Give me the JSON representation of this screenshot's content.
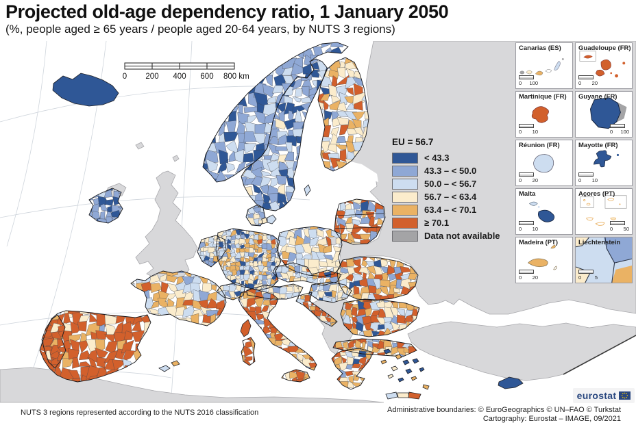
{
  "title": "Projected old-age dependency ratio, 1 January 2050",
  "subtitle": "(%, people aged ≥ 65 years / people aged 20-64 years, by NUTS 3 regions)",
  "scale_bar": {
    "ticks": [
      "0",
      "200",
      "400",
      "600",
      "800 km"
    ]
  },
  "legend": {
    "eu_label": "EU = 56.7",
    "classes": [
      {
        "label": "< 43.3",
        "color": "#2f5796"
      },
      {
        "label": "43.3 – < 50.0",
        "color": "#8fa8d5"
      },
      {
        "label": "50.0 – < 56.7",
        "color": "#cdddf0"
      },
      {
        "label": "56.7 – < 63.4",
        "color": "#fbeccc"
      },
      {
        "label": "63.4 – < 70.1",
        "color": "#eab264"
      },
      {
        "label": "≥ 70.1",
        "color": "#d2602c"
      },
      {
        "label": "Data not available",
        "color": "#a4a4a6"
      }
    ]
  },
  "map": {
    "sea_color": "#ffffff",
    "no_data_land_color": "#d8d8da",
    "border_color": "#17181c",
    "mosaic_regions": [
      {
        "id": "norway",
        "weights": [
          0.28,
          0.5,
          0.22,
          0.0,
          0.0,
          0.0
        ]
      },
      {
        "id": "sweden",
        "weights": [
          0.25,
          0.45,
          0.25,
          0.05,
          0.0,
          0.0
        ]
      },
      {
        "id": "finland",
        "weights": [
          0.02,
          0.13,
          0.2,
          0.3,
          0.2,
          0.15
        ]
      },
      {
        "id": "denmark",
        "weights": [
          0.05,
          0.3,
          0.35,
          0.3,
          0.0,
          0.0
        ]
      },
      {
        "id": "baltics",
        "weights": [
          0.05,
          0.15,
          0.1,
          0.1,
          0.15,
          0.45
        ]
      },
      {
        "id": "ireland",
        "weights": [
          0.2,
          0.7,
          0.1,
          0.0,
          0.0,
          0.0
        ]
      },
      {
        "id": "poland",
        "weights": [
          0.02,
          0.12,
          0.3,
          0.33,
          0.15,
          0.08
        ]
      },
      {
        "id": "germany",
        "weights": [
          0.12,
          0.16,
          0.25,
          0.25,
          0.18,
          0.04
        ]
      },
      {
        "id": "benelux",
        "weights": [
          0.1,
          0.27,
          0.33,
          0.22,
          0.08,
          0.0
        ]
      },
      {
        "id": "france",
        "weights": [
          0.02,
          0.1,
          0.22,
          0.28,
          0.28,
          0.1
        ]
      },
      {
        "id": "spain",
        "weights": [
          0.0,
          0.02,
          0.05,
          0.13,
          0.2,
          0.6
        ]
      },
      {
        "id": "portugal",
        "weights": [
          0.0,
          0.0,
          0.03,
          0.1,
          0.22,
          0.65
        ]
      },
      {
        "id": "alpine_ch",
        "weights": [
          0.05,
          0.2,
          0.4,
          0.3,
          0.05,
          0.0
        ]
      },
      {
        "id": "alpine_at",
        "weights": [
          0.03,
          0.15,
          0.4,
          0.32,
          0.1,
          0.0
        ]
      },
      {
        "id": "czsk",
        "weights": [
          0.03,
          0.12,
          0.25,
          0.35,
          0.17,
          0.08
        ]
      },
      {
        "id": "hungary",
        "weights": [
          0.02,
          0.13,
          0.35,
          0.3,
          0.15,
          0.05
        ]
      },
      {
        "id": "croatia",
        "weights": [
          0.0,
          0.02,
          0.08,
          0.25,
          0.3,
          0.35
        ]
      },
      {
        "id": "romania",
        "weights": [
          0.03,
          0.07,
          0.15,
          0.25,
          0.28,
          0.22
        ]
      },
      {
        "id": "bulgaria",
        "weights": [
          0.05,
          0.08,
          0.12,
          0.2,
          0.25,
          0.3
        ]
      },
      {
        "id": "italy",
        "weights": [
          0.02,
          0.04,
          0.06,
          0.18,
          0.3,
          0.4
        ]
      },
      {
        "id": "sicily",
        "weights": [
          0.0,
          0.0,
          0.05,
          0.15,
          0.3,
          0.5
        ]
      },
      {
        "id": "sardinia",
        "weights": [
          0.0,
          0.0,
          0.0,
          0.1,
          0.25,
          0.65
        ]
      },
      {
        "id": "greece_n",
        "weights": [
          0.06,
          0.08,
          0.12,
          0.24,
          0.25,
          0.25
        ]
      },
      {
        "id": "greece_s",
        "weights": [
          0.05,
          0.05,
          0.08,
          0.22,
          0.3,
          0.3
        ]
      }
    ],
    "fixed_regions": [
      {
        "id": "iceland",
        "class": 0
      },
      {
        "id": "cyprus",
        "class": 0
      },
      {
        "id": "corsica",
        "class": 5
      },
      {
        "id": "crete_w",
        "class": 2
      },
      {
        "id": "crete_m",
        "class": 3
      },
      {
        "id": "crete_e",
        "class": 5
      },
      {
        "id": "gotland",
        "class": 2
      },
      {
        "id": "dk_zealand",
        "class": 2
      },
      {
        "id": "dk_funen",
        "class": 3
      },
      {
        "id": "balear_1",
        "class": 2
      },
      {
        "id": "balear_2",
        "class": 4
      },
      {
        "id": "aegean1",
        "class": 0
      },
      {
        "id": "aegean2",
        "class": 4
      },
      {
        "id": "aegean3",
        "class": 0
      },
      {
        "id": "aegean4",
        "class": 3
      },
      {
        "id": "aegean5",
        "class": 0
      },
      {
        "id": "aegean6",
        "class": 0
      },
      {
        "id": "aegean7",
        "class": 4
      },
      {
        "id": "aegean8",
        "class": 3
      },
      {
        "id": "aegean9",
        "class": 0
      },
      {
        "id": "aegean10",
        "class": 4
      },
      {
        "id": "aegean11",
        "class": 0
      },
      {
        "id": "rhodes",
        "class": 4
      }
    ]
  },
  "insets": [
    {
      "id": "canarias",
      "name": "Canarias (ES)",
      "scale": [
        "0",
        "100"
      ]
    },
    {
      "id": "guadeloupe",
      "name": "Guadeloupe (FR)",
      "scale": [
        "0",
        "20"
      ]
    },
    {
      "id": "martinique",
      "name": "Martinique (FR)",
      "scale": [
        "0",
        "10"
      ]
    },
    {
      "id": "guyane",
      "name": "Guyane (FR)",
      "scale": [
        "0",
        "100"
      ]
    },
    {
      "id": "reunion",
      "name": "Réunion (FR)",
      "scale": [
        "0",
        "20"
      ]
    },
    {
      "id": "mayotte",
      "name": "Mayotte (FR)",
      "scale": [
        "0",
        "10"
      ]
    },
    {
      "id": "malta",
      "name": "Malta",
      "scale": [
        "0",
        "10"
      ]
    },
    {
      "id": "acores",
      "name": "Açores (PT)",
      "scale": [
        "0",
        "50"
      ]
    },
    {
      "id": "madeira",
      "name": "Madeira (PT)",
      "scale": [
        "0",
        "20"
      ]
    },
    {
      "id": "liechtenstein",
      "name": "Liechtenstein",
      "scale": [
        "0",
        "5"
      ]
    }
  ],
  "footer": {
    "left": "NUTS 3 regions represented according to the NUTS 2016 classification",
    "right_line1": "Administrative boundaries: © EuroGeographics © UN–FAO © Turkstat",
    "right_line2": "Cartography: Eurostat – IMAGE, 09/2021"
  },
  "logo": {
    "text": "eurostat",
    "flag_blue": "#29477f",
    "star_yellow": "#ffcc00"
  }
}
